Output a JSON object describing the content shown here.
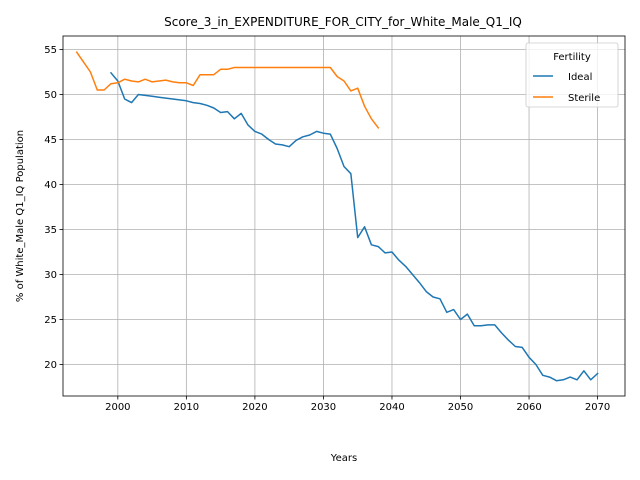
{
  "chart_data": {
    "type": "line",
    "title": "Score_3_in_EXPENDITURE_FOR_CITY_for_White_Male_Q1_IQ",
    "xlabel": "Years",
    "ylabel": "% of White_Male Q1_IQ Population",
    "xlim": [
      1992,
      2074
    ],
    "ylim": [
      16.5,
      56.5
    ],
    "xticks": [
      2000,
      2010,
      2020,
      2030,
      2040,
      2050,
      2060,
      2070
    ],
    "yticks": [
      20,
      25,
      30,
      35,
      40,
      45,
      50,
      55
    ],
    "grid": true,
    "legend": {
      "title": "Fertility",
      "placement": "top-right"
    },
    "series": [
      {
        "name": "Ideal",
        "color": "#1f77b4",
        "x": [
          1999,
          2000,
          2001,
          2002,
          2003,
          2004,
          2005,
          2006,
          2007,
          2008,
          2009,
          2010,
          2011,
          2012,
          2013,
          2014,
          2015,
          2016,
          2017,
          2018,
          2019,
          2020,
          2021,
          2022,
          2023,
          2024,
          2025,
          2026,
          2027,
          2028,
          2029,
          2030,
          2031,
          2032,
          2033,
          2034,
          2035,
          2036,
          2037,
          2038,
          2039,
          2040,
          2041,
          2042,
          2043,
          2044,
          2045,
          2046,
          2047,
          2048,
          2049,
          2050,
          2051,
          2052,
          2053,
          2054,
          2055,
          2056,
          2057,
          2058,
          2059,
          2060,
          2061,
          2062,
          2063,
          2064,
          2065,
          2066,
          2067,
          2068,
          2069,
          2070
        ],
        "y": [
          52.4,
          51.5,
          49.5,
          49.1,
          50.0,
          49.9,
          49.8,
          49.7,
          49.6,
          49.5,
          49.4,
          49.3,
          49.1,
          49.0,
          48.8,
          48.5,
          48.0,
          48.1,
          47.3,
          47.9,
          46.6,
          45.9,
          45.6,
          45.0,
          44.5,
          44.4,
          44.2,
          44.9,
          45.3,
          45.5,
          45.9,
          45.7,
          45.6,
          44.0,
          42.0,
          41.2,
          34.1,
          35.3,
          33.3,
          33.1,
          32.4,
          32.5,
          31.6,
          30.9,
          30.0,
          29.1,
          28.1,
          27.5,
          27.3,
          25.8,
          26.1,
          25.0,
          25.6,
          24.3,
          24.3,
          24.4,
          24.4,
          23.5,
          22.7,
          22.0,
          21.9,
          20.8,
          20.0,
          18.8,
          18.6,
          18.2,
          18.3,
          18.6,
          18.3,
          19.3,
          18.3,
          19.0
        ]
      },
      {
        "name": "Sterile",
        "color": "#ff7f0e",
        "x": [
          1994,
          1995,
          1996,
          1997,
          1998,
          1999,
          2000,
          2001,
          2002,
          2003,
          2004,
          2005,
          2006,
          2007,
          2008,
          2009,
          2010,
          2011,
          2012,
          2013,
          2014,
          2015,
          2016,
          2017,
          2018,
          2019,
          2020,
          2021,
          2022,
          2023,
          2024,
          2025,
          2026,
          2027,
          2028,
          2029,
          2030,
          2031,
          2032,
          2033,
          2034,
          2035,
          2036,
          2037,
          2038
        ],
        "y": [
          54.7,
          53.6,
          52.5,
          50.5,
          50.5,
          51.2,
          51.3,
          51.7,
          51.5,
          51.4,
          51.7,
          51.4,
          51.5,
          51.6,
          51.4,
          51.3,
          51.3,
          51.0,
          52.2,
          52.2,
          52.2,
          52.8,
          52.8,
          53.0,
          53.0,
          53.0,
          53.0,
          53.0,
          53.0,
          53.0,
          53.0,
          53.0,
          53.0,
          53.0,
          53.0,
          53.0,
          53.0,
          53.0,
          52.0,
          51.5,
          50.4,
          50.7,
          48.7,
          47.3,
          46.3
        ]
      }
    ]
  }
}
